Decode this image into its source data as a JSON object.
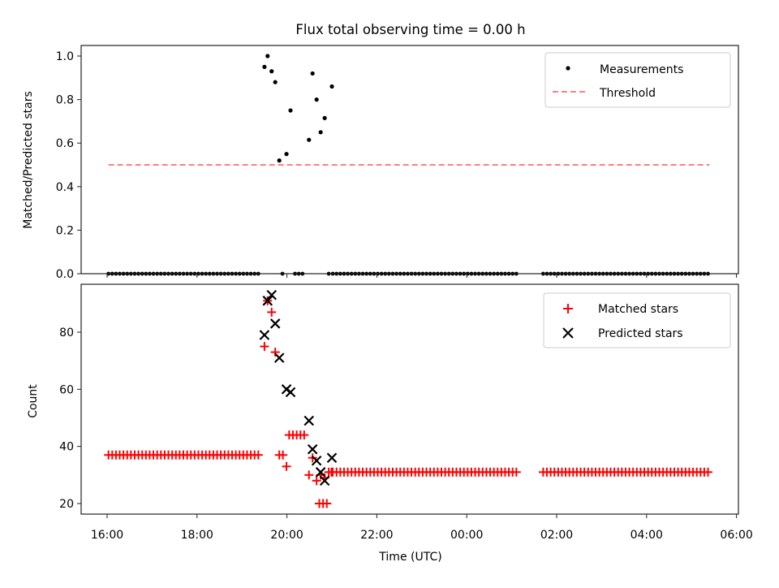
{
  "chart_data": [
    {
      "type": "scatter",
      "title": "Flux total observing time = 0.00 h",
      "xlabel": "",
      "ylabel": "Matched/Predicted stars",
      "ylim": [
        0.0,
        1.05
      ],
      "yticks": [
        "0.0",
        "0.2",
        "0.4",
        "0.6",
        "0.8",
        "1.0"
      ],
      "ytick_values": [
        0.0,
        0.2,
        0.4,
        0.6,
        0.8,
        1.0
      ],
      "xlim_hours_from_1600": [
        -0.55,
        14.15
      ],
      "legend": {
        "placement": "top-right",
        "entries": [
          "Measurements",
          "Threshold"
        ]
      },
      "series": [
        {
          "name": "Measurements",
          "color": "#000000",
          "marker": "dot",
          "zero_runs_hours_from_1600": [
            [
              0.03,
              3.4
            ],
            [
              3.9,
              3.9
            ],
            [
              4.18,
              4.42
            ],
            [
              4.93,
              4.93
            ],
            [
              5.02,
              9.15
            ],
            [
              9.7,
              13.4
            ]
          ],
          "points": [
            {
              "t": 3.5,
              "v": 0.95
            },
            {
              "t": 3.57,
              "v": 1.0
            },
            {
              "t": 3.66,
              "v": 0.93
            },
            {
              "t": 3.74,
              "v": 0.88
            },
            {
              "t": 3.83,
              "v": 0.52
            },
            {
              "t": 3.99,
              "v": 0.55
            },
            {
              "t": 4.08,
              "v": 0.75
            },
            {
              "t": 4.49,
              "v": 0.615
            },
            {
              "t": 4.57,
              "v": 0.92
            },
            {
              "t": 4.66,
              "v": 0.8
            },
            {
              "t": 4.75,
              "v": 0.65
            },
            {
              "t": 4.84,
              "v": 0.715
            },
            {
              "t": 5.0,
              "v": 0.86
            }
          ]
        },
        {
          "name": "Threshold",
          "color": "#ff7f7f",
          "style": "dashed",
          "value": 0.5,
          "t_range": [
            0.03,
            13.4
          ]
        }
      ]
    },
    {
      "type": "scatter",
      "title": "",
      "xlabel": "Time (UTC)",
      "ylabel": "Count",
      "ylim": [
        16.4,
        96.9
      ],
      "yticks": [
        "20",
        "40",
        "60",
        "80"
      ],
      "ytick_values": [
        20,
        40,
        60,
        80
      ],
      "xticks": [
        "16:00",
        "18:00",
        "20:00",
        "22:00",
        "00:00",
        "02:00",
        "04:00",
        "06:00"
      ],
      "xtick_hours_from_1600": [
        0,
        2,
        4,
        6,
        8,
        10,
        12,
        14
      ],
      "xlim_hours_from_1600": [
        -0.55,
        14.15
      ],
      "legend": {
        "placement": "top-right",
        "entries": [
          "Matched stars",
          "Predicted stars"
        ]
      },
      "series": [
        {
          "name": "Matched stars",
          "color": "#ff0000",
          "marker": "plus",
          "runs": [
            {
              "from": 0.03,
              "to": 3.4,
              "v": 37
            },
            {
              "from": 5.02,
              "to": 9.15,
              "v": 31
            },
            {
              "from": 9.7,
              "to": 13.4,
              "v": 31
            },
            {
              "from": 4.05,
              "to": 4.45,
              "v": 44
            },
            {
              "from": 4.72,
              "to": 4.9,
              "v": 20
            }
          ],
          "points": [
            {
              "t": 3.5,
              "v": 75
            },
            {
              "t": 3.57,
              "v": 91
            },
            {
              "t": 3.66,
              "v": 87
            },
            {
              "t": 3.74,
              "v": 73
            },
            {
              "t": 3.83,
              "v": 37
            },
            {
              "t": 3.91,
              "v": 37
            },
            {
              "t": 3.99,
              "v": 33
            },
            {
              "t": 4.49,
              "v": 30
            },
            {
              "t": 4.57,
              "v": 36
            },
            {
              "t": 4.66,
              "v": 28
            },
            {
              "t": 4.75,
              "v": 30
            },
            {
              "t": 4.84,
              "v": 29
            },
            {
              "t": 4.93,
              "v": 31
            },
            {
              "t": 4.99,
              "v": 31
            }
          ]
        },
        {
          "name": "Predicted stars",
          "color": "#000000",
          "marker": "x",
          "points": [
            {
              "t": 3.5,
              "v": 79
            },
            {
              "t": 3.57,
              "v": 91
            },
            {
              "t": 3.66,
              "v": 93
            },
            {
              "t": 3.74,
              "v": 83
            },
            {
              "t": 3.83,
              "v": 71
            },
            {
              "t": 3.99,
              "v": 60
            },
            {
              "t": 4.08,
              "v": 59
            },
            {
              "t": 4.49,
              "v": 49
            },
            {
              "t": 4.57,
              "v": 39
            },
            {
              "t": 4.66,
              "v": 35
            },
            {
              "t": 4.75,
              "v": 31
            },
            {
              "t": 4.84,
              "v": 28
            },
            {
              "t": 5.0,
              "v": 36
            }
          ]
        }
      ]
    }
  ]
}
